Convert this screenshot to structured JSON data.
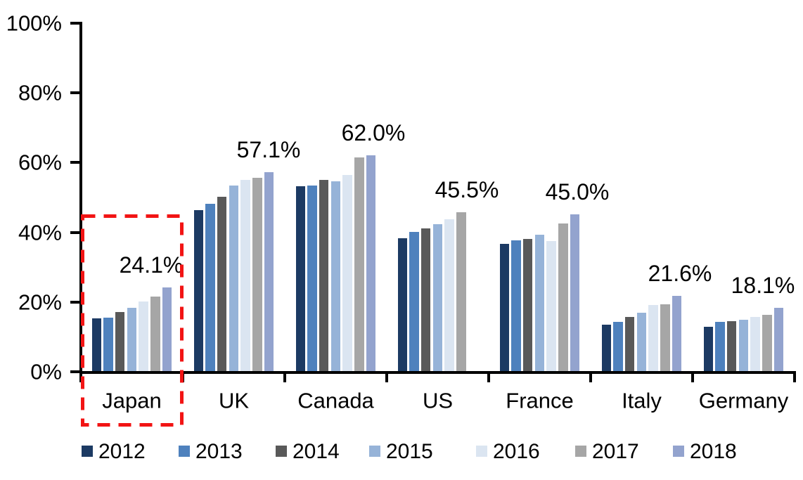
{
  "chart_data": {
    "type": "bar",
    "title": "",
    "xlabel": "",
    "ylabel": "",
    "ylim": [
      0,
      100
    ],
    "grid": false,
    "legend_position": "bottom",
    "y_axis": {
      "tick_labels": [
        "100%",
        "80%",
        "60%",
        "40%",
        "20%",
        "0%"
      ],
      "tick_values": [
        100,
        80,
        60,
        40,
        20,
        0
      ]
    },
    "categories": [
      "Japan",
      "UK",
      "Canada",
      "US",
      "France",
      "Italy",
      "Germany"
    ],
    "series": [
      {
        "name": "2012",
        "color": "#1C3A63",
        "values": [
          15.1,
          46.2,
          53.1,
          38.2,
          36.6,
          13.4,
          12.7
        ]
      },
      {
        "name": "2013",
        "color": "#4E81BD",
        "values": [
          15.3,
          48.0,
          53.3,
          40.0,
          37.5,
          14.1,
          14.1
        ]
      },
      {
        "name": "2014",
        "color": "#595959",
        "values": [
          16.9,
          50.0,
          54.9,
          41.0,
          37.9,
          15.5,
          14.4
        ]
      },
      {
        "name": "2015",
        "color": "#96B3D8",
        "values": [
          18.2,
          53.3,
          54.5,
          42.1,
          39.2,
          16.8,
          14.8
        ]
      },
      {
        "name": "2016",
        "color": "#DBE5F1",
        "values": [
          20.0,
          54.8,
          56.2,
          43.5,
          37.4,
          19.0,
          15.5
        ]
      },
      {
        "name": "2017",
        "color": "#A6A6A6",
        "values": [
          21.3,
          55.5,
          61.4,
          45.5,
          42.3,
          19.2,
          16.1
        ]
      },
      {
        "name": "2018",
        "color": "#93A3CE",
        "values": [
          24.1,
          57.1,
          62.0,
          null,
          45.0,
          21.6,
          18.1
        ]
      }
    ],
    "data_labels": [
      "24.1%",
      "57.1%",
      "62.0%",
      "45.5%",
      "45.0%",
      "21.6%",
      "18.1%"
    ],
    "highlight": {
      "category": "Japan",
      "color": "#F21414",
      "style": "dashed-rectangle"
    }
  }
}
